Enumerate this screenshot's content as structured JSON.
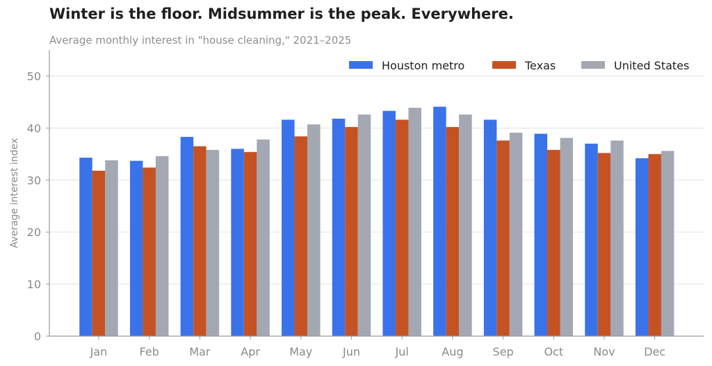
{
  "title": "Winter is the floor. Midsummer is the peak. Everywhere.",
  "subtitle": "Average monthly interest in \"house cleaning,\" 2021–2025",
  "chart_data": {
    "type": "bar",
    "categories": [
      "Jan",
      "Feb",
      "Mar",
      "Apr",
      "May",
      "Jun",
      "Jul",
      "Aug",
      "Sep",
      "Oct",
      "Nov",
      "Dec"
    ],
    "series": [
      {
        "name": "Houston metro",
        "color": "#3a72ea",
        "values": [
          34.3,
          33.7,
          38.3,
          36.0,
          41.6,
          41.8,
          43.3,
          44.1,
          41.6,
          38.9,
          37.0,
          34.2
        ]
      },
      {
        "name": "Texas",
        "color": "#c55223",
        "values": [
          31.8,
          32.4,
          36.5,
          35.4,
          38.4,
          40.2,
          41.6,
          40.2,
          37.6,
          35.8,
          35.2,
          35.0
        ]
      },
      {
        "name": "United States",
        "color": "#a3a8b3",
        "values": [
          33.8,
          34.6,
          35.8,
          37.8,
          40.7,
          42.6,
          43.9,
          42.6,
          39.1,
          38.1,
          37.6,
          35.6
        ]
      }
    ],
    "xlabel": "",
    "ylabel": "Average interest index",
    "ylim": [
      0,
      55
    ],
    "yticks": [
      0,
      10,
      20,
      30,
      40,
      50
    ],
    "grid": "horizontal",
    "legend": "top-right"
  }
}
